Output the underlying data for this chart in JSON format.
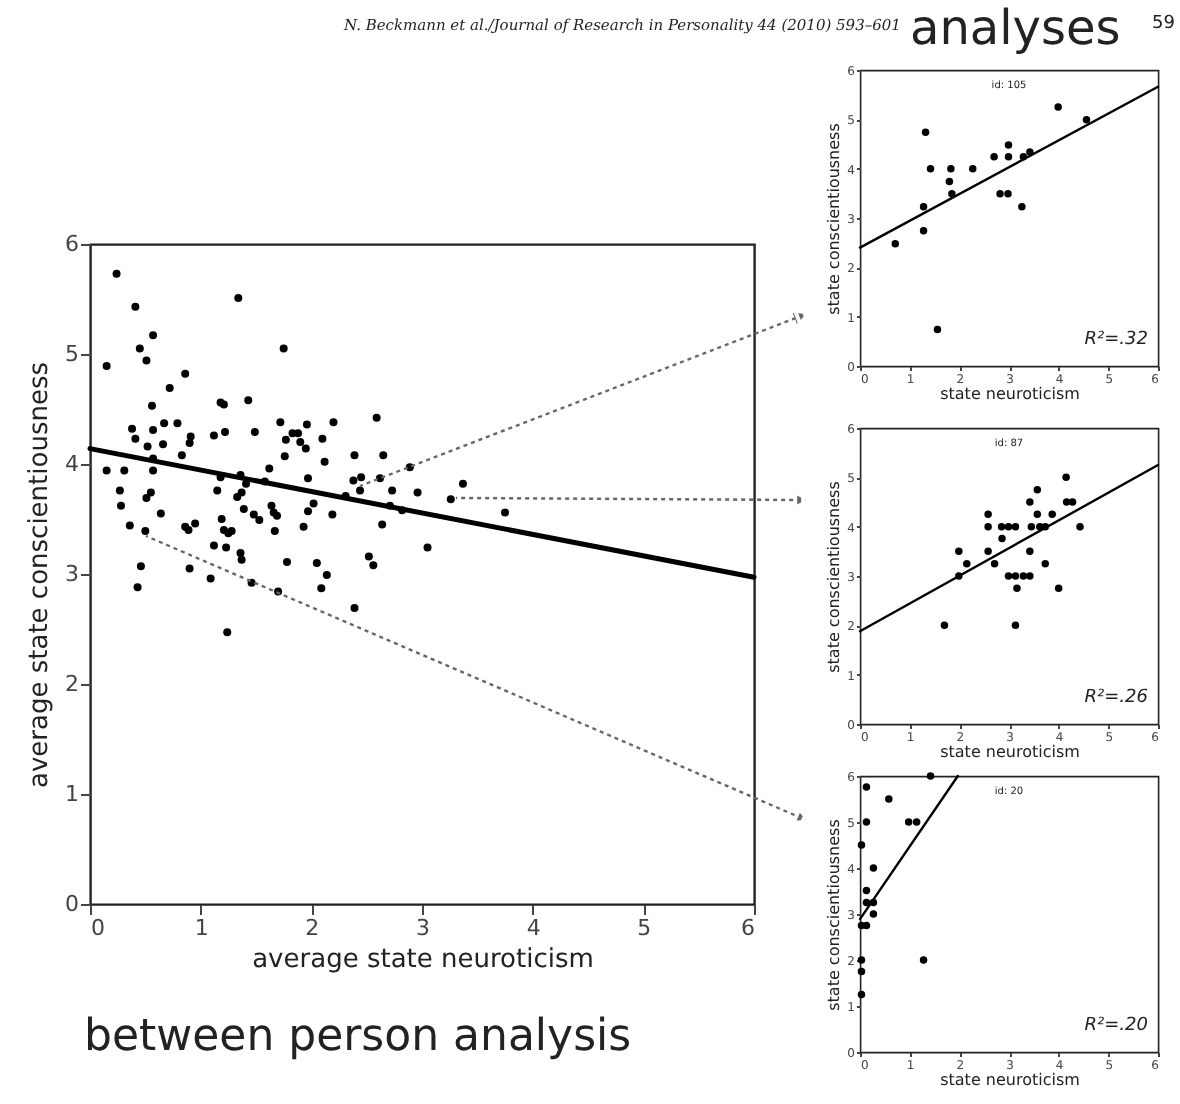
{
  "chart_data": [
    {
      "type": "scatter",
      "xlabel": "average state neuroticism",
      "ylabel": "average state conscientiousness",
      "xlim": [
        0,
        6
      ],
      "ylim": [
        0,
        6
      ],
      "xticks": [
        0,
        1,
        2,
        3,
        4,
        5,
        6
      ],
      "yticks": [
        0,
        1,
        2,
        3,
        4,
        5,
        6
      ],
      "annotations": [
        "N. Beckmann et al./Journal of Research in Personality 44 (2010) 593–601",
        "59",
        "between person analysis"
      ],
      "series": [
        {
          "type": "scatter",
          "marker": "circle",
          "color": "#000000",
          "x": [
            0.15,
            0.15,
            0.24,
            0.27,
            0.28,
            0.31,
            0.36,
            0.38,
            0.41,
            0.41,
            0.43,
            0.45,
            0.46,
            0.5,
            0.51,
            0.51,
            0.52,
            0.55,
            0.56,
            0.57,
            0.57,
            0.57,
            0.57,
            0.64,
            0.66,
            0.67,
            0.72,
            0.79,
            0.83,
            0.86,
            0.86,
            0.89,
            0.9,
            0.91,
            0.9,
            0.95,
            1.09,
            1.12,
            1.12,
            1.15,
            1.18,
            1.18,
            1.19,
            1.21,
            1.22,
            1.23,
            1.21,
            1.24,
            1.25,
            1.28,
            1.34,
            1.33,
            1.36,
            1.36,
            1.37,
            1.37,
            1.39,
            1.41,
            1.43,
            1.46,
            1.48,
            1.49,
            1.53,
            1.58,
            1.62,
            1.64,
            1.66,
            1.67,
            1.69,
            1.7,
            1.72,
            1.75,
            1.76,
            1.77,
            1.78,
            1.83,
            1.88,
            1.9,
            1.93,
            1.95,
            1.96,
            1.97,
            1.97,
            2.02,
            2.05,
            2.09,
            2.1,
            2.12,
            2.14,
            2.19,
            2.2,
            2.31,
            2.38,
            2.39,
            2.39,
            2.44,
            2.45,
            2.52,
            2.56,
            2.59,
            2.62,
            2.64,
            2.65,
            2.71,
            2.73,
            2.82,
            2.89,
            2.96,
            3.05,
            3.26,
            3.37,
            3.75
          ],
          "values": [
            3.94,
            4.89,
            5.73,
            3.76,
            3.62,
            3.94,
            3.44,
            4.32,
            4.23,
            5.43,
            2.88,
            5.05,
            3.07,
            3.39,
            4.94,
            3.69,
            4.16,
            3.74,
            4.53,
            5.17,
            4.31,
            4.05,
            3.94,
            3.55,
            4.18,
            4.37,
            4.69,
            4.37,
            4.08,
            3.43,
            4.82,
            3.4,
            4.19,
            4.25,
            3.05,
            3.46,
            2.96,
            4.26,
            3.26,
            3.76,
            4.56,
            3.88,
            3.5,
            4.54,
            4.29,
            3.24,
            3.4,
            2.47,
            3.37,
            3.39,
            5.51,
            3.7,
            3.9,
            3.19,
            3.13,
            3.74,
            3.59,
            3.82,
            4.58,
            2.92,
            3.54,
            4.29,
            3.49,
            3.84,
            3.96,
            3.62,
            3.56,
            3.39,
            3.53,
            2.84,
            4.38,
            5.05,
            4.07,
            4.22,
            3.11,
            4.28,
            4.28,
            4.2,
            3.43,
            4.14,
            4.36,
            3.87,
            3.57,
            3.64,
            3.1,
            2.87,
            4.23,
            4.02,
            2.99,
            3.54,
            4.38,
            3.71,
            3.85,
            2.69,
            4.08,
            3.76,
            3.88,
            3.16,
            3.08,
            4.42,
            3.87,
            3.45,
            4.08,
            3.62,
            3.76,
            3.58,
            3.97,
            3.74,
            3.24,
            3.68,
            3.82,
            3.56
          ]
        },
        {
          "type": "line",
          "color": "#000000",
          "x": [
            0,
            6
          ],
          "values": [
            4.14,
            2.97
          ]
        }
      ]
    },
    {
      "type": "scatter",
      "title": "analyses",
      "xlabel": "state neuroticism",
      "ylabel": "state conscientiousness",
      "xlim": [
        0,
        6
      ],
      "ylim": [
        0,
        6
      ],
      "xticks": [
        0,
        1,
        2,
        3,
        4,
        5,
        6
      ],
      "yticks": [
        0,
        1,
        2,
        3,
        4,
        5,
        6
      ],
      "annotations": [
        "id: 105",
        "R²=.32"
      ],
      "series": [
        {
          "type": "scatter",
          "marker": "circle",
          "color": "#000000",
          "x": [
            0.71,
            1.32,
            1.28,
            1.28,
            1.42,
            1.56,
            1.83,
            1.8,
            1.85,
            2.27,
            2.7,
            2.82,
            2.98,
            2.99,
            2.99,
            3.26,
            3.29,
            3.42,
            3.99,
            4.56
          ],
          "values": [
            2.48,
            4.74,
            3.23,
            2.74,
            4.0,
            0.74,
            4.0,
            3.74,
            3.49,
            4.0,
            4.24,
            3.49,
            3.49,
            4.48,
            4.24,
            3.23,
            4.24,
            4.34,
            5.25,
            4.99
          ]
        },
        {
          "type": "line",
          "color": "#000000",
          "x": [
            0,
            6
          ],
          "values": [
            2.4,
            5.66
          ]
        }
      ]
    },
    {
      "type": "scatter",
      "xlabel": "state neuroticism",
      "ylabel": "state conscientiousness",
      "xlim": [
        0,
        6
      ],
      "ylim": [
        0,
        6
      ],
      "xticks": [
        0,
        1,
        2,
        3,
        4,
        5,
        6
      ],
      "yticks": [
        0,
        1,
        2,
        3,
        4,
        5,
        6
      ],
      "annotations": [
        "id: 87",
        "R²=.26"
      ],
      "series": [
        {
          "type": "scatter",
          "marker": "circle",
          "color": "#000000",
          "x": [
            1.7,
            1.99,
            1.99,
            2.15,
            2.58,
            2.58,
            2.58,
            2.71,
            2.85,
            2.86,
            2.99,
            3.13,
            2.99,
            3.13,
            3.29,
            3.42,
            3.16,
            3.13,
            3.42,
            3.42,
            3.57,
            3.57,
            3.45,
            3.62,
            3.73,
            3.73,
            3.87,
            4.0,
            4.15,
            4.16,
            4.28,
            4.43
          ],
          "values": [
            2.0,
            3.5,
            3.0,
            3.25,
            4.25,
            4.0,
            3.5,
            3.25,
            4.0,
            3.76,
            4.0,
            4.0,
            3.0,
            3.0,
            3.0,
            3.0,
            2.75,
            2.0,
            4.5,
            3.5,
            4.75,
            4.25,
            4.0,
            4.0,
            4.0,
            3.25,
            4.25,
            2.75,
            5.0,
            4.5,
            4.5,
            4.0
          ]
        },
        {
          "type": "line",
          "color": "#000000",
          "x": [
            0,
            6
          ],
          "values": [
            1.88,
            5.25
          ]
        }
      ]
    },
    {
      "type": "scatter",
      "xlabel": "state neuroticism",
      "ylabel": "state conscientiousness",
      "xlim": [
        0,
        6
      ],
      "ylim": [
        0,
        6
      ],
      "xticks": [
        0,
        1,
        2,
        3,
        4,
        5,
        6
      ],
      "yticks": [
        0,
        1,
        2,
        3,
        4,
        5,
        6
      ],
      "annotations": [
        "id: 20",
        "R²=.20"
      ],
      "series": [
        {
          "type": "scatter",
          "marker": "circle",
          "color": "#000000",
          "x": [
            0.13,
            0.13,
            0.03,
            0.03,
            0.03,
            0.03,
            0.03,
            0.13,
            0.13,
            0.13,
            0.27,
            0.27,
            0.27,
            0.58,
            0.98,
            1.14,
            1.28,
            1.42
          ],
          "values": [
            5.76,
            5.0,
            4.5,
            2.75,
            2.0,
            1.75,
            1.25,
            3.51,
            3.25,
            2.75,
            3.25,
            3.0,
            4.0,
            5.5,
            5.0,
            5.0,
            2.0,
            6.0
          ]
        },
        {
          "type": "line",
          "color": "#000000",
          "x": [
            0,
            1.97
          ],
          "values": [
            2.89,
            6.0
          ]
        }
      ]
    }
  ]
}
